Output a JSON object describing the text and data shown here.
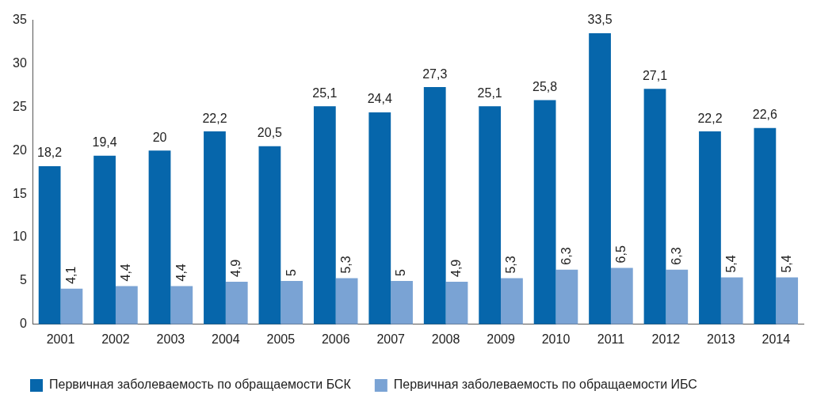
{
  "chart_data": {
    "type": "bar",
    "categories": [
      "2001",
      "2002",
      "2003",
      "2004",
      "2005",
      "2006",
      "2007",
      "2008",
      "2009",
      "2010",
      "2011",
      "2012",
      "2013",
      "2014"
    ],
    "series": [
      {
        "name": "Первичная заболеваемость по обращаемости БСК",
        "color": "#0666ab",
        "values": [
          18.2,
          19.4,
          20,
          22.2,
          20.5,
          25.1,
          24.4,
          27.3,
          25.1,
          25.8,
          33.5,
          27.1,
          22.2,
          22.6
        ],
        "value_labels": [
          "18,2",
          "19,4",
          "20",
          "22,2",
          "20,5",
          "25,1",
          "24,4",
          "27,3",
          "25,1",
          "25,8",
          "33,5",
          "27,1",
          "22,2",
          "22,6"
        ]
      },
      {
        "name": "Первичная заболеваемость по обращаемости ИБС",
        "color": "#7aa3d4",
        "values": [
          4.1,
          4.4,
          4.4,
          4.9,
          5,
          5.3,
          5,
          4.9,
          5.3,
          6.3,
          6.5,
          6.3,
          5.4,
          5.4
        ],
        "value_labels": [
          "4,1",
          "4,4",
          "4,4",
          "4,9",
          "5",
          "5,3",
          "5",
          "4,9",
          "5,3",
          "6,3",
          "6,5",
          "6,3",
          "5,4",
          "5,4"
        ]
      }
    ],
    "ylim": [
      0,
      35
    ],
    "yticks": [
      0,
      5,
      10,
      15,
      20,
      25,
      30,
      35
    ],
    "grid": false,
    "legend": "bottom"
  }
}
